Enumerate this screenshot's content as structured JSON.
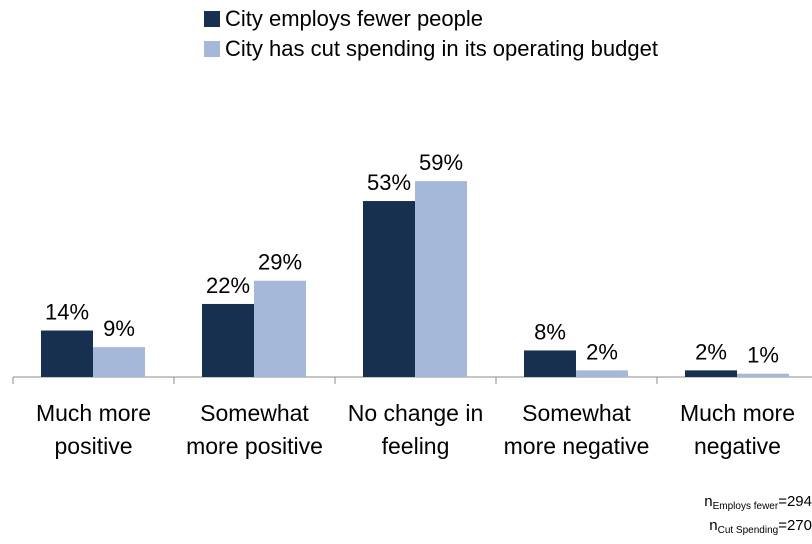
{
  "chart_data": {
    "type": "bar",
    "categories": [
      [
        "Much more",
        "positive"
      ],
      [
        "Somewhat",
        "more positive"
      ],
      [
        "No change in",
        "feeling"
      ],
      [
        "Somewhat",
        "more negative"
      ],
      [
        "Much more",
        "negative"
      ]
    ],
    "series": [
      {
        "name": "City employs fewer people",
        "values": [
          14,
          22,
          53,
          8,
          2
        ],
        "labels": [
          "14%",
          "22%",
          "53%",
          "8%",
          "2%"
        ],
        "color": "#17304f"
      },
      {
        "name": "City has cut spending in its operating budget",
        "values": [
          9,
          29,
          59,
          2,
          1
        ],
        "labels": [
          "9%",
          "29%",
          "59%",
          "2%",
          "1%"
        ],
        "color": "#a6b8d9"
      }
    ],
    "ylim": [
      0,
      60
    ],
    "grid": false,
    "legend_position": "top",
    "footnote": [
      {
        "n": "n",
        "sub": "Employs fewer",
        "value": "=294"
      },
      {
        "n": "n",
        "sub": "Cut Spending",
        "value": "=270"
      }
    ]
  }
}
